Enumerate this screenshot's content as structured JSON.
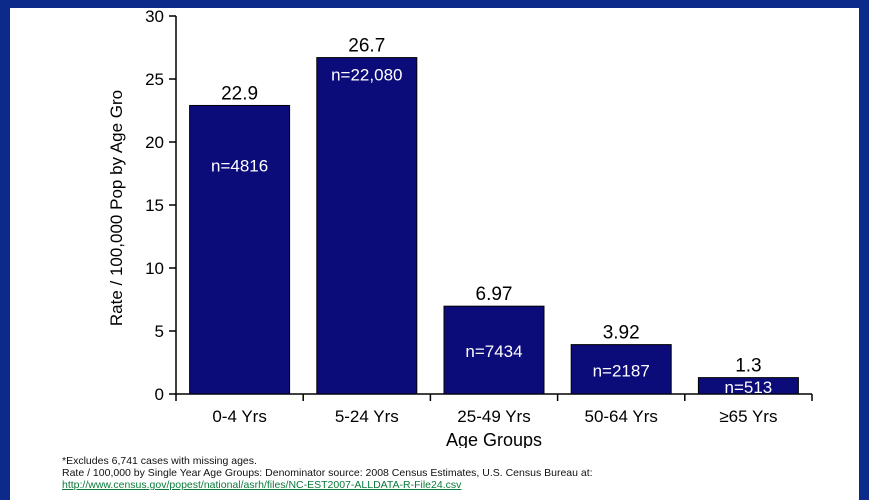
{
  "colors": {
    "bar": "#0b0b7a",
    "frame": "#0b2a8a"
  },
  "chart_data": {
    "type": "bar",
    "xlabel": "Age Groups",
    "ylabel": "Rate / 100,000 Pop by Age Gro",
    "ylim": [
      0,
      30
    ],
    "yticks": [
      0,
      5,
      10,
      15,
      20,
      25,
      30
    ],
    "categories": [
      "0-4 Yrs",
      "5-24 Yrs",
      "25-49 Yrs",
      "50-64 Yrs",
      "≥65  Yrs"
    ],
    "values": [
      22.9,
      26.7,
      6.97,
      3.92,
      1.3
    ],
    "value_labels": [
      "22.9",
      "26.7",
      "6.97",
      "3.92",
      "1.3"
    ],
    "n_labels": [
      "n=4816",
      "n=22,080",
      "n=7434",
      "n=2187",
      "n=513"
    ],
    "grid": false,
    "legend": "none"
  },
  "footnotes": {
    "line1": "*Excludes 6,741 cases with missing ages.",
    "line2": "Rate / 100,000 by Single Year Age Groups: Denominator source: 2008 Census Estimates, U.S. Census Bureau at:",
    "link": "http://www.census.gov/popest/national/asrh/files/NC-EST2007-ALLDATA-R-File24.csv"
  }
}
